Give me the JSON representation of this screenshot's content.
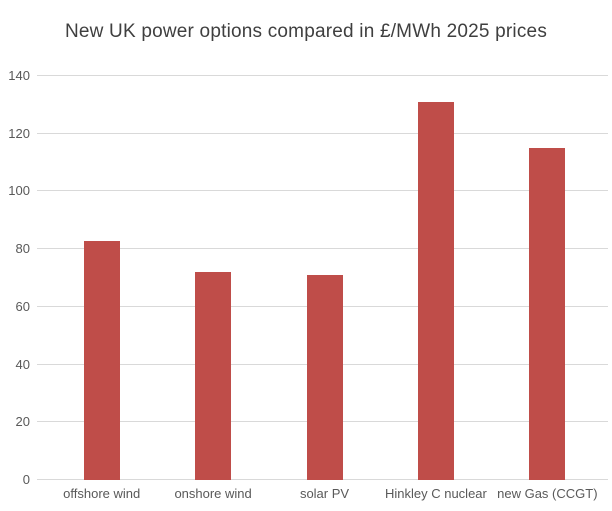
{
  "chart_data": {
    "type": "bar",
    "title": "New UK power options compared in £/MWh 2025 prices",
    "categories": [
      "offshore wind",
      "onshore wind",
      "solar PV",
      "Hinkley C nuclear",
      "new Gas (CCGT)"
    ],
    "values": [
      83,
      72,
      71,
      131,
      115
    ],
    "xlabel": "",
    "ylabel": "",
    "ylim": [
      0,
      140
    ],
    "yticks": [
      0,
      20,
      40,
      60,
      80,
      100,
      120,
      140
    ],
    "grid": "horizontal-only",
    "legend": "none",
    "bar_color": "#bf4d49",
    "gridline_color": "#d9d9d9",
    "tick_label_color": "#595959",
    "title_color": "#3f3f3f",
    "background_color": "#ffffff"
  }
}
